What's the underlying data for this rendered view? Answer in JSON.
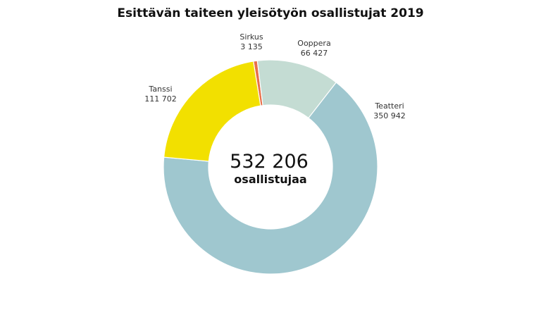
{
  "chart_data": {
    "type": "pie",
    "title": "Esittävän taiteen yleisötyön osallistujat 2019",
    "center_value": "532 206",
    "center_label": "osallistujaa",
    "slices": [
      {
        "name": "Sirkus",
        "value": 3135,
        "value_label": "3 135",
        "color": "#e8704a"
      },
      {
        "name": "Ooppera",
        "value": 66427,
        "value_label": "66 427",
        "color": "#c4dcd3"
      },
      {
        "name": "Teatteri",
        "value": 350942,
        "value_label": "350 942",
        "color": "#9fc7cf"
      },
      {
        "name": "Tanssi",
        "value": 111702,
        "value_label": "111 702",
        "color": "#f2e000"
      }
    ]
  }
}
